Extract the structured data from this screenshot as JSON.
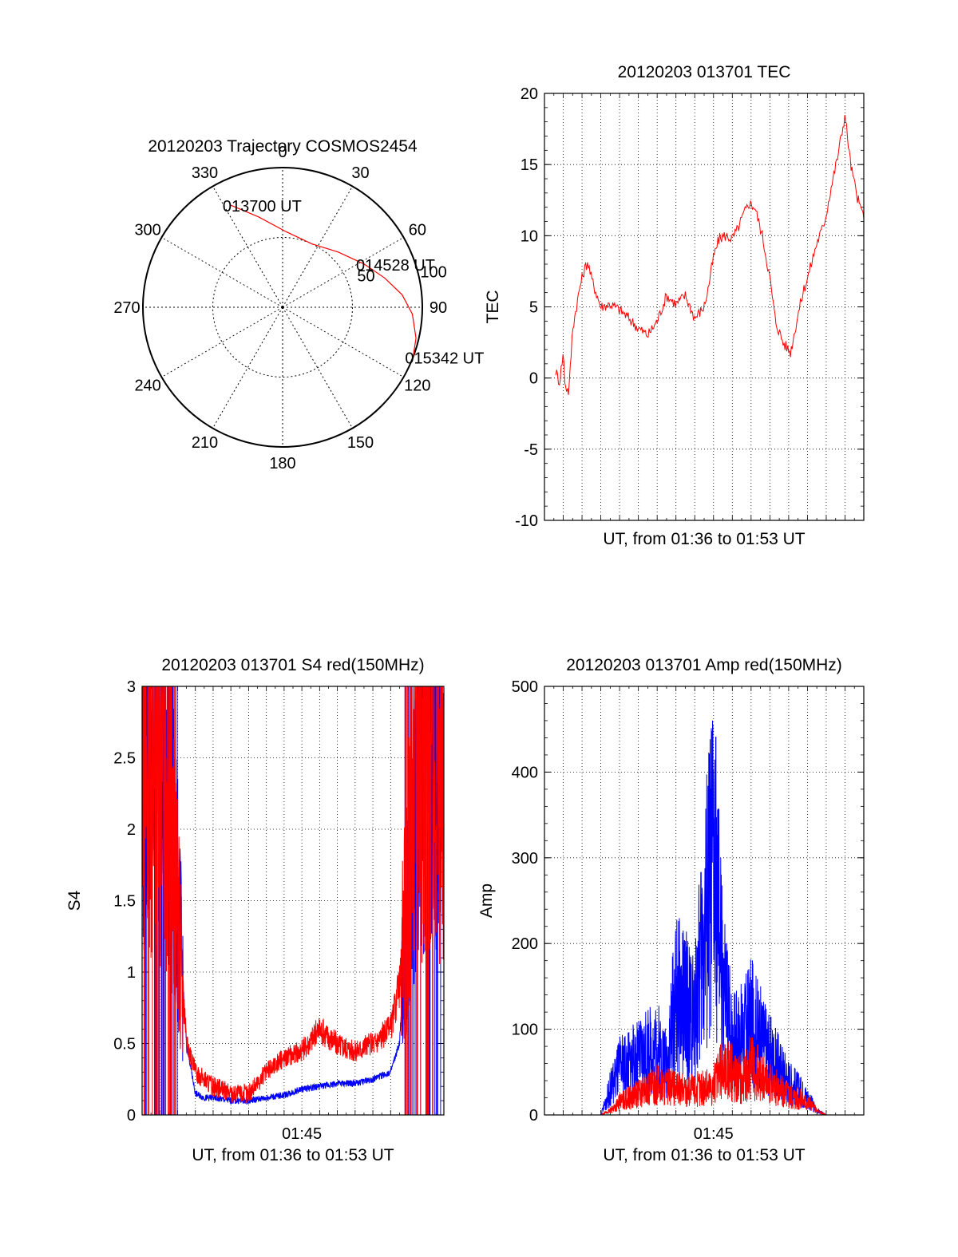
{
  "chart_data": [
    {
      "type": "polar",
      "title": "20120203 Trajectory COSMOS2454",
      "angle_labels": [
        "0",
        "30",
        "60",
        "90",
        "120",
        "150",
        "180",
        "210",
        "240",
        "270",
        "300",
        "330"
      ],
      "radius_labels": [
        "50",
        "100"
      ],
      "r_max": 100,
      "series": [
        {
          "color": "#ff0000",
          "points": [
            {
              "az": 333,
              "r": 82
            },
            {
              "az": 345,
              "r": 67
            },
            {
              "az": 3,
              "r": 54
            },
            {
              "az": 25,
              "r": 50
            },
            {
              "az": 45,
              "r": 56
            },
            {
              "az": 62,
              "r": 66
            },
            {
              "az": 74,
              "r": 76
            },
            {
              "az": 84,
              "r": 86
            },
            {
              "az": 93,
              "r": 93
            },
            {
              "az": 103,
              "r": 98
            },
            {
              "az": 111,
              "r": 100
            }
          ]
        }
      ],
      "annotations": [
        {
          "text": "013700 UT",
          "az": 333,
          "r": 82
        },
        {
          "text": "014528 UT",
          "az": 62,
          "r": 66
        },
        {
          "text": "015342 UT",
          "az": 111,
          "r": 100
        }
      ]
    },
    {
      "type": "line",
      "title": "20120203 013701 TEC",
      "xlabel": "UT, from 01:36 to 01:53 UT",
      "ylabel": "TEC",
      "xlim": [
        0,
        17
      ],
      "ylim": [
        -10,
        20
      ],
      "y_ticks": [
        -10,
        -5,
        0,
        5,
        10,
        15,
        20
      ],
      "grid": true,
      "series": [
        {
          "color": "#ff0000",
          "x": [
            0.6,
            0.8,
            1.0,
            1.1,
            1.3,
            1.5,
            1.7,
            1.9,
            2.1,
            2.3,
            2.5,
            3.0,
            3.5,
            4.0,
            4.5,
            5.0,
            5.5,
            6.0,
            6.5,
            7.0,
            7.5,
            8.0,
            8.5,
            8.7,
            9.0,
            9.3,
            9.6,
            10.0,
            10.3,
            10.6,
            10.9,
            11.2,
            11.6,
            12.0,
            12.3,
            12.7,
            13.1,
            13.5,
            13.8,
            14.0,
            14.2,
            14.5,
            14.8,
            15.0,
            15.2,
            15.6,
            16.0,
            16.3,
            16.6,
            16.8,
            17.0
          ],
          "y": [
            0.5,
            -0.3,
            1.8,
            -0.5,
            -1.0,
            3.5,
            5.0,
            6.5,
            7.5,
            8.2,
            7.0,
            5.0,
            5.2,
            4.8,
            4.2,
            3.5,
            3.0,
            4.0,
            5.8,
            5.2,
            5.8,
            4.2,
            5.0,
            6.2,
            8.5,
            9.8,
            10.0,
            9.8,
            10.5,
            11.5,
            12.3,
            12.0,
            10.0,
            7.0,
            4.0,
            2.5,
            1.8,
            4.5,
            6.2,
            7.0,
            8.0,
            9.5,
            10.5,
            11.5,
            13.0,
            15.5,
            18.5,
            15.0,
            13.0,
            12.0,
            11.5
          ]
        }
      ]
    },
    {
      "type": "line",
      "title": "20120203 013701 S4 red(150MHz)",
      "xlabel": "UT, from 01:36 to 01:53 UT",
      "ylabel": "S4",
      "xlim": [
        0,
        17
      ],
      "ylim": [
        0,
        3
      ],
      "y_ticks": [
        "0",
        "0.5",
        "1",
        "1.5",
        "2",
        "2.5",
        "3"
      ],
      "x_tick_label": "01:45",
      "x_tick_value": 9,
      "grid": true,
      "series": [
        {
          "color": "#0000ff",
          "x": [
            0.0,
            0.5,
            1.0,
            1.5,
            2.0,
            2.5,
            3.0,
            3.5,
            4.0,
            5.0,
            6.0,
            7.0,
            8.0,
            9.0,
            10.0,
            11.0,
            12.0,
            13.0,
            14.0,
            14.5,
            15.0,
            15.5,
            16.0,
            16.5,
            17.0
          ],
          "y": [
            2.6,
            2.8,
            2.7,
            2.5,
            1.5,
            0.5,
            0.15,
            0.12,
            0.12,
            0.1,
            0.1,
            0.12,
            0.14,
            0.18,
            0.2,
            0.22,
            0.22,
            0.25,
            0.3,
            0.5,
            1.5,
            2.6,
            2.8,
            2.7,
            2.6
          ]
        },
        {
          "color": "#ff0000",
          "x": [
            0.0,
            0.5,
            1.0,
            1.5,
            2.0,
            2.5,
            3.0,
            3.5,
            4.0,
            5.0,
            6.0,
            7.0,
            8.0,
            9.0,
            10.0,
            11.0,
            12.0,
            13.0,
            14.0,
            14.5,
            15.0,
            15.5,
            16.0,
            16.5,
            17.0
          ],
          "y": [
            2.5,
            2.7,
            2.6,
            2.4,
            1.4,
            0.5,
            0.3,
            0.25,
            0.2,
            0.15,
            0.15,
            0.3,
            0.4,
            0.45,
            0.6,
            0.5,
            0.45,
            0.5,
            0.6,
            0.9,
            1.6,
            2.6,
            2.7,
            2.6,
            2.5
          ]
        }
      ]
    },
    {
      "type": "line",
      "title": "20120203 013701 Amp red(150MHz)",
      "xlabel": "UT, from 01:36 to 01:53 UT",
      "ylabel": "Amp",
      "xlim": [
        0,
        17
      ],
      "ylim": [
        0,
        500
      ],
      "y_ticks": [
        0,
        100,
        200,
        300,
        400,
        500
      ],
      "x_tick_label": "01:45",
      "x_tick_value": 9,
      "grid": true,
      "series": [
        {
          "color": "#0000ff",
          "x": [
            0.0,
            2.0,
            3.0,
            3.5,
            4.0,
            5.0,
            6.0,
            6.5,
            7.0,
            7.5,
            8.0,
            8.5,
            9.0,
            9.5,
            10.0,
            10.5,
            11.0,
            12.0,
            13.0,
            14.0,
            14.5,
            15.0,
            17.0
          ],
          "y": [
            0,
            0,
            0,
            30,
            55,
            65,
            80,
            60,
            140,
            130,
            110,
            220,
            300,
            150,
            90,
            90,
            110,
            70,
            40,
            20,
            5,
            0,
            0
          ]
        },
        {
          "color": "#ff0000",
          "x": [
            0.0,
            2.0,
            3.0,
            3.5,
            4.0,
            5.0,
            6.0,
            7.0,
            8.0,
            9.0,
            9.5,
            10.0,
            10.5,
            11.0,
            12.0,
            13.0,
            14.0,
            14.5,
            15.0,
            17.0
          ],
          "y": [
            0,
            0,
            0,
            5,
            15,
            25,
            35,
            30,
            30,
            35,
            55,
            50,
            40,
            55,
            35,
            25,
            15,
            5,
            0,
            0
          ]
        }
      ]
    }
  ]
}
